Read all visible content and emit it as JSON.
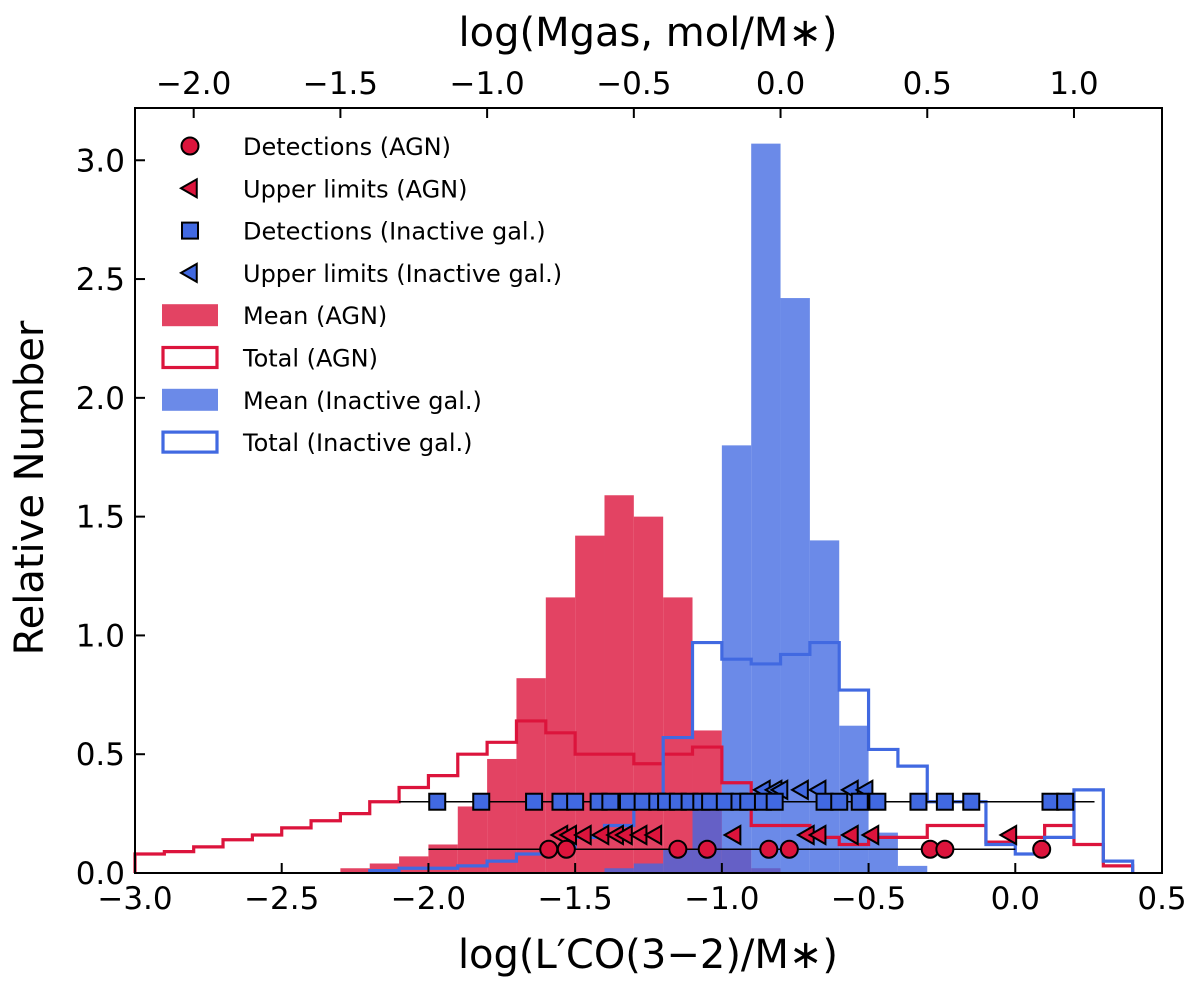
{
  "chart_data": {
    "type": "histogram",
    "xlabel": "log(L′CO(3−2)/M∗)",
    "ylabel": "Relative Number",
    "top_xlabel": "log(Mgas, mol/M∗)",
    "xlim": [
      -3.0,
      0.5
    ],
    "ylim": [
      0.0,
      3.22
    ],
    "top_xlim": [
      -2.2,
      1.3
    ],
    "x_ticks": [
      "−3.0",
      "−2.5",
      "−2.0",
      "−1.5",
      "−1.0",
      "−0.5",
      "0.0",
      "0.5"
    ],
    "x_tick_values": [
      -3.0,
      -2.5,
      -2.0,
      -1.5,
      -1.0,
      -0.5,
      0.0,
      0.5
    ],
    "y_ticks": [
      "0.0",
      "0.5",
      "1.0",
      "1.5",
      "2.0",
      "2.5",
      "3.0"
    ],
    "y_tick_values": [
      0.0,
      0.5,
      1.0,
      1.5,
      2.0,
      2.5,
      3.0
    ],
    "top_ticks": [
      "−2.0",
      "−1.5",
      "−1.0",
      "−0.5",
      "0.0",
      "0.5",
      "1.0"
    ],
    "top_tick_values": [
      -2.0,
      -1.5,
      -1.0,
      -0.5,
      0.0,
      0.5,
      1.0
    ],
    "colors": {
      "agn": "#dc143c",
      "agn_fill": "#dc143c",
      "inactive": "#4169e1",
      "inactive_fill": "#4169e1"
    },
    "legend": {
      "position": "upper-left",
      "entries": [
        {
          "label": "Detections (AGN)",
          "kind": "circle"
        },
        {
          "label": "Upper limits (AGN)",
          "kind": "tri-red"
        },
        {
          "label": "Detections (Inactive gal.)",
          "kind": "square"
        },
        {
          "label": "Upper limits (Inactive gal.)",
          "kind": "tri-blue"
        },
        {
          "label": "Mean (AGN)",
          "kind": "fill-red"
        },
        {
          "label": "Total (AGN)",
          "kind": "step-red"
        },
        {
          "label": "Mean (Inactive gal.)",
          "kind": "fill-blue"
        },
        {
          "label": "Total (Inactive gal.)",
          "kind": "step-blue"
        }
      ]
    },
    "series": [
      {
        "name": "Mean (AGN)",
        "style": "filled",
        "bin_width": 0.1,
        "bin_lefts": [
          -2.3,
          -2.2,
          -2.1,
          -2.0,
          -1.9,
          -1.8,
          -1.7,
          -1.6,
          -1.5,
          -1.4,
          -1.3,
          -1.2,
          -1.1,
          -1.0,
          -0.9
        ],
        "values": [
          0.02,
          0.04,
          0.07,
          0.12,
          0.28,
          0.48,
          0.82,
          1.16,
          1.42,
          1.59,
          1.5,
          1.16,
          0.6,
          0.1,
          0.02
        ]
      },
      {
        "name": "Mean (Inactive gal.)",
        "style": "filled",
        "bin_width": 0.1,
        "bin_lefts": [
          -1.4,
          -1.3,
          -1.2,
          -1.1,
          -1.0,
          -0.9,
          -0.8,
          -0.7,
          -0.6,
          -0.5,
          -0.4
        ],
        "values": [
          0.02,
          0.04,
          0.1,
          0.27,
          1.8,
          3.07,
          2.42,
          1.4,
          0.62,
          0.17,
          0.03
        ]
      },
      {
        "name": "Total (AGN)",
        "style": "step",
        "bin_width": 0.1,
        "bin_lefts": [
          -3.0,
          -2.9,
          -2.8,
          -2.7,
          -2.6,
          -2.5,
          -2.4,
          -2.3,
          -2.2,
          -2.1,
          -2.0,
          -1.9,
          -1.8,
          -1.7,
          -1.6,
          -1.5,
          -1.4,
          -1.3,
          -1.2,
          -1.1,
          -1.0,
          -0.9,
          -0.8,
          -0.7,
          -0.6,
          -0.5,
          -0.4,
          -0.3,
          -0.2,
          -0.1,
          0.0,
          0.1,
          0.2,
          0.3
        ],
        "values": [
          0.08,
          0.09,
          0.11,
          0.14,
          0.16,
          0.19,
          0.22,
          0.25,
          0.3,
          0.36,
          0.41,
          0.5,
          0.55,
          0.64,
          0.59,
          0.5,
          0.5,
          0.46,
          0.5,
          0.53,
          0.38,
          0.2,
          0.2,
          0.15,
          0.12,
          0.15,
          0.15,
          0.2,
          0.2,
          0.13,
          0.15,
          0.2,
          0.12,
          0.03
        ]
      },
      {
        "name": "Total (Inactive gal.)",
        "style": "step",
        "bin_width": 0.1,
        "bin_lefts": [
          -2.2,
          -2.1,
          -2.0,
          -1.9,
          -1.8,
          -1.7,
          -1.6,
          -1.5,
          -1.4,
          -1.3,
          -1.2,
          -1.1,
          -1.0,
          -0.9,
          -0.8,
          -0.7,
          -0.6,
          -0.5,
          -0.4,
          -0.3,
          -0.2,
          -0.1,
          0.0,
          0.1,
          0.2,
          0.3
        ],
        "values": [
          0.01,
          0.02,
          0.02,
          0.03,
          0.05,
          0.08,
          0.11,
          0.15,
          0.2,
          0.28,
          0.57,
          0.97,
          0.9,
          0.88,
          0.92,
          0.97,
          0.77,
          0.52,
          0.45,
          0.3,
          0.3,
          0.12,
          0.08,
          0.15,
          0.35,
          0.05
        ]
      }
    ],
    "points": {
      "agn_baseline": {
        "y": 0.1,
        "x_range": [
          -2.0,
          0.0
        ]
      },
      "inactive_baseline": {
        "y": 0.3,
        "x_range": [
          -2.1,
          0.27
        ]
      },
      "agn_detections": {
        "y": 0.1,
        "x": [
          -1.59,
          -1.53,
          -1.15,
          -1.05,
          -0.84,
          -0.77,
          -0.29,
          -0.24,
          0.09
        ]
      },
      "agn_upper_limits": {
        "y": 0.16,
        "x": [
          -1.55,
          -1.52,
          -1.47,
          -1.41,
          -1.36,
          -1.33,
          -1.28,
          -1.23,
          -0.96,
          -0.71,
          -0.67,
          -0.56,
          -0.49,
          -0.02
        ]
      },
      "inactive_detections": {
        "y": 0.3,
        "x": [
          -1.97,
          -1.82,
          -1.64,
          -1.55,
          -1.5,
          -1.42,
          -1.38,
          -1.32,
          -1.27,
          -1.22,
          -1.19,
          -1.15,
          -1.11,
          -1.07,
          -1.04,
          -0.99,
          -0.94,
          -0.91,
          -0.86,
          -0.82,
          -0.65,
          -0.6,
          -0.53,
          -0.47,
          -0.33,
          -0.24,
          -0.15,
          0.12,
          0.17
        ]
      },
      "inactive_upper_limits": {
        "y": 0.35,
        "x": [
          -0.86,
          -0.82,
          -0.8,
          -0.73,
          -0.67,
          -0.56,
          -0.51
        ]
      }
    }
  }
}
